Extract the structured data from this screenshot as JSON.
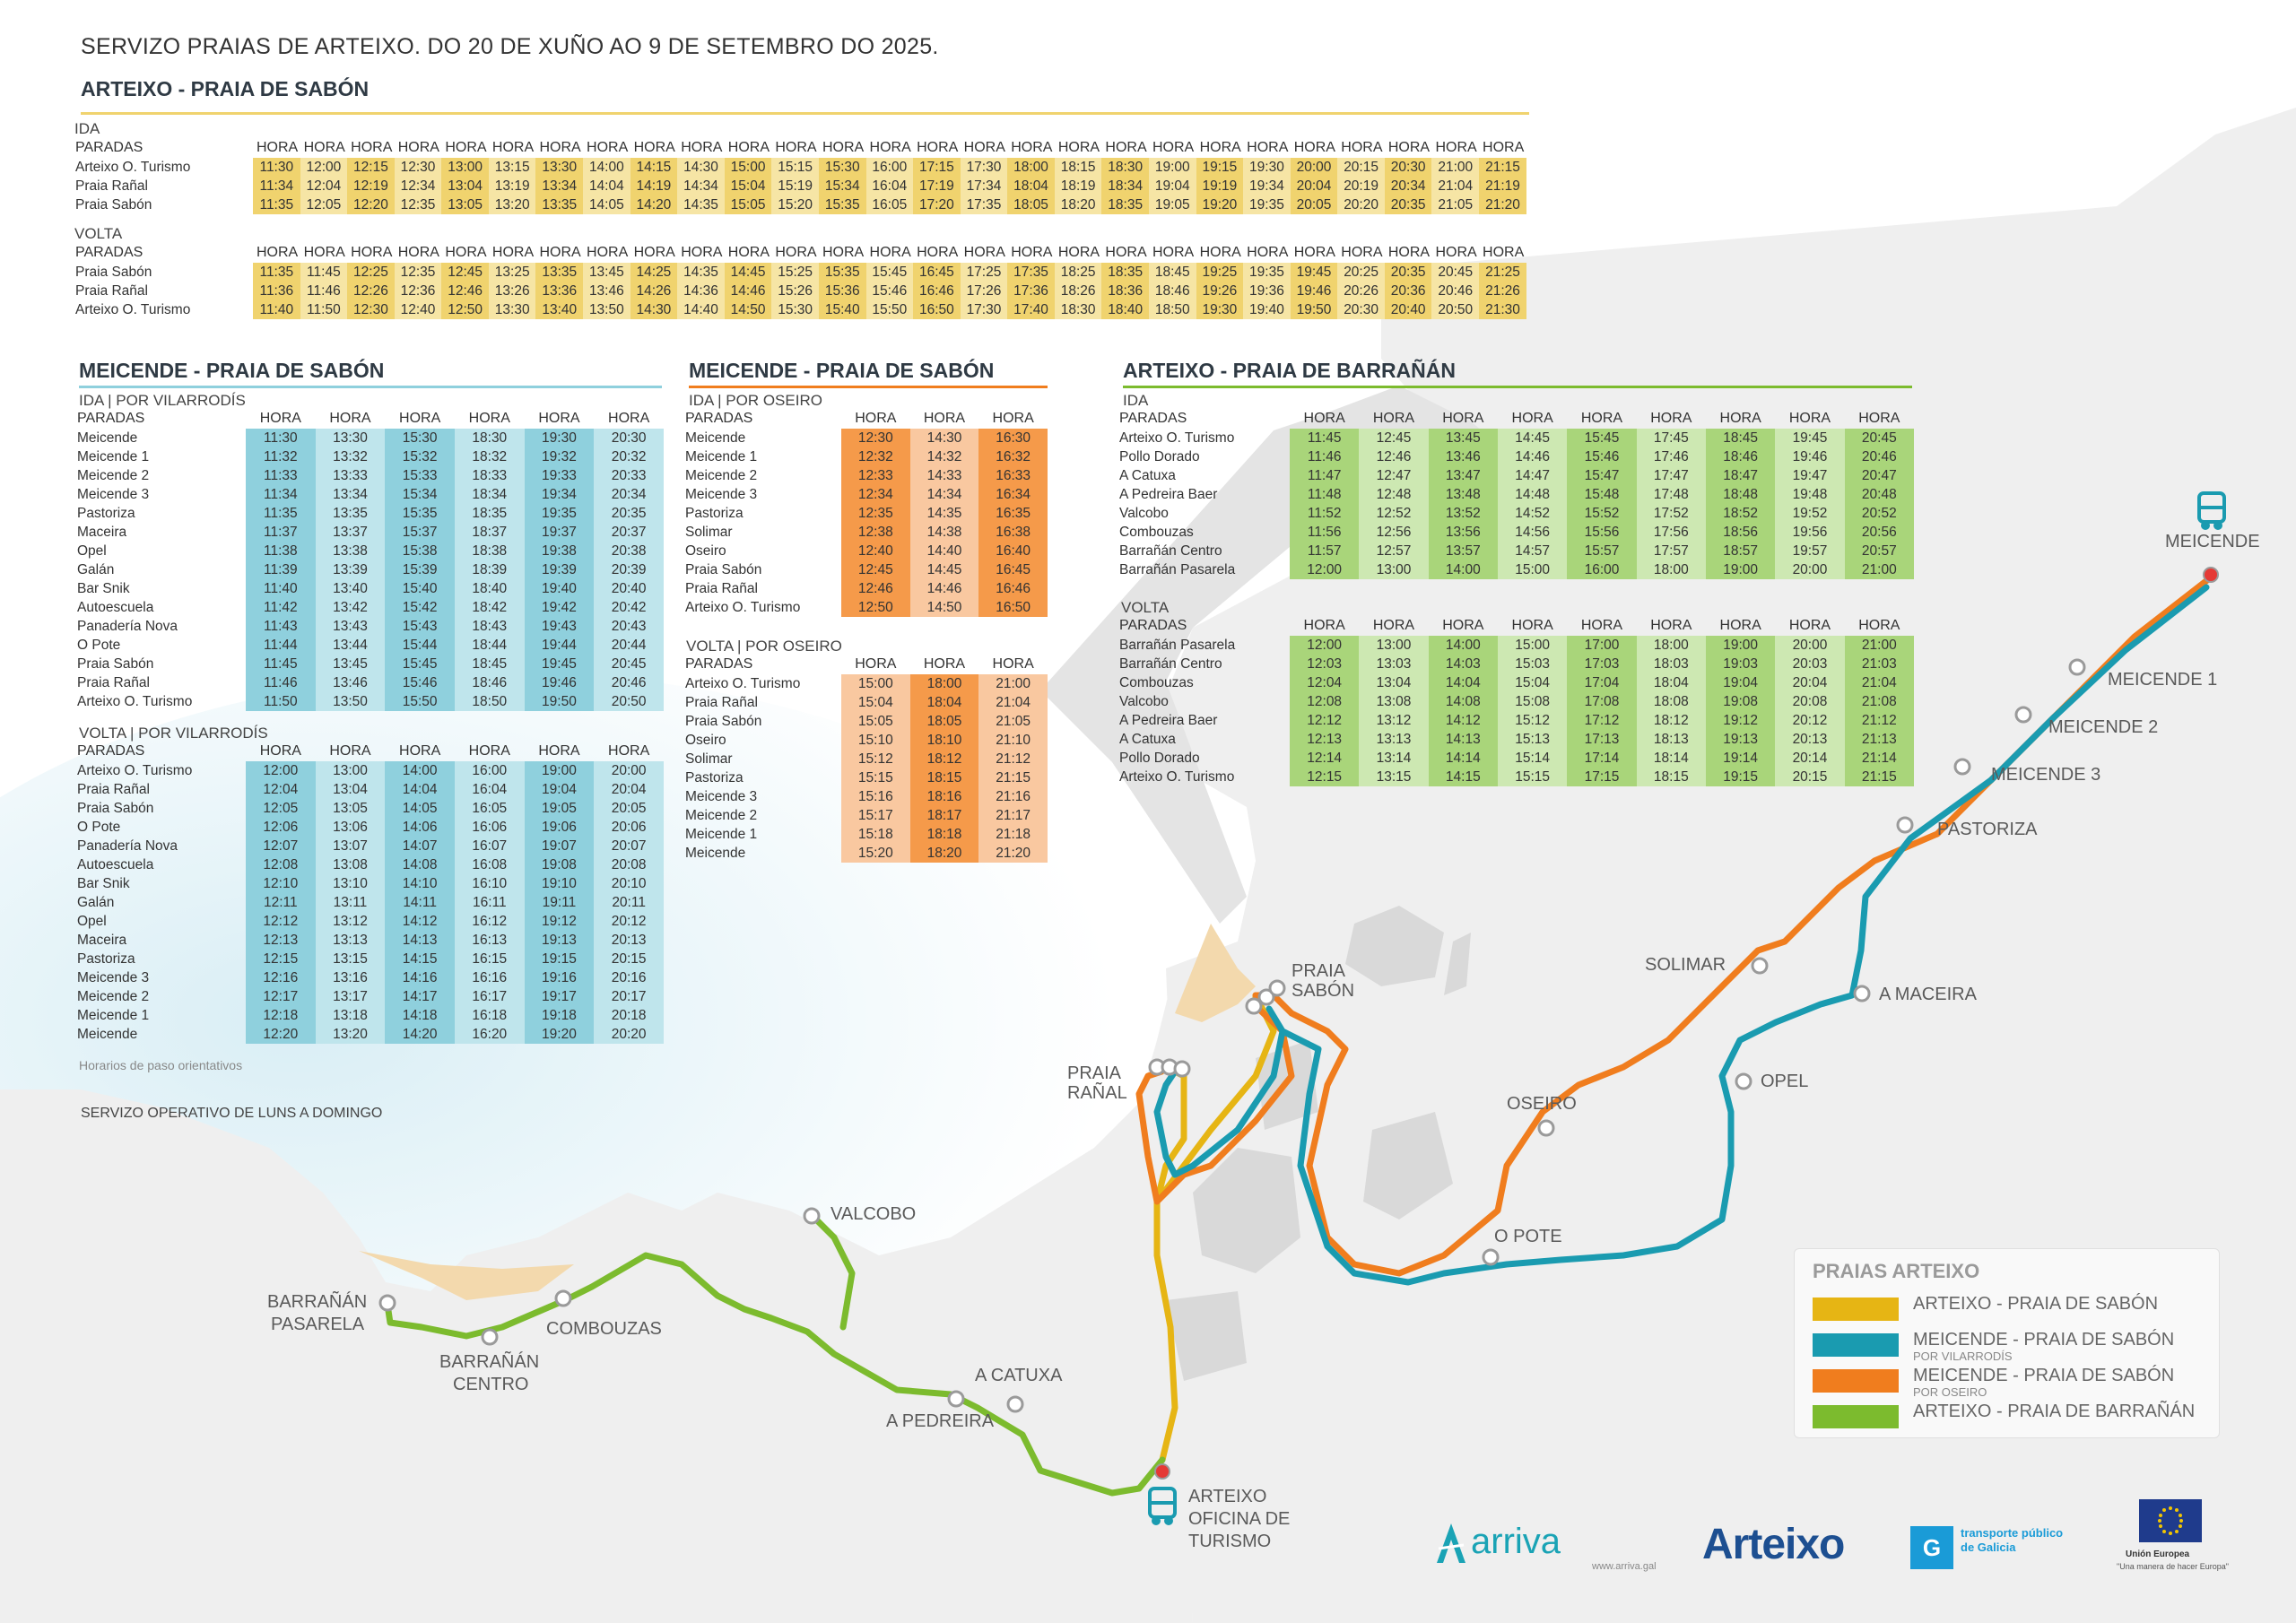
{
  "title": "SERVIZO PRAIAS DE ARTEIXO. DO 20 DE XUÑO AO 9 DE SETEMBRO DO 2025.",
  "colors": {
    "yellow": "#f0d36e",
    "yellow_alt": "#f6e5a5",
    "blue": "#8fd0dd",
    "blue_alt": "#bfe5ec",
    "orange": "#f59a4a",
    "orange_alt": "#f9c8a0",
    "green": "#a9d57a",
    "green_alt": "#cde8b2",
    "line_yellow": "#e6b514",
    "line_blue": "#1a9bb0",
    "line_orange": "#f07d1e",
    "line_green": "#7cbb2e"
  },
  "sabon": {
    "title": "ARTEIXO - PRAIA DE SABÓN",
    "ida_label": "IDA",
    "volta_label": "VOLTA",
    "paradas_label": "PARADAS",
    "hora_label": "HORA",
    "ida": [
      {
        "stop": "Arteixo O. Turismo",
        "times": [
          "11:30",
          "12:00",
          "12:15",
          "12:30",
          "13:00",
          "13:15",
          "13:30",
          "14:00",
          "14:15",
          "14:30",
          "15:00",
          "15:15",
          "15:30",
          "16:00",
          "17:15",
          "17:30",
          "18:00",
          "18:15",
          "18:30",
          "19:00",
          "19:15",
          "19:30",
          "20:00",
          "20:15",
          "20:30",
          "21:00",
          "21:15"
        ]
      },
      {
        "stop": "Praia Rañal",
        "times": [
          "11:34",
          "12:04",
          "12:19",
          "12:34",
          "13:04",
          "13:19",
          "13:34",
          "14:04",
          "14:19",
          "14:34",
          "15:04",
          "15:19",
          "15:34",
          "16:04",
          "17:19",
          "17:34",
          "18:04",
          "18:19",
          "18:34",
          "19:04",
          "19:19",
          "19:34",
          "20:04",
          "20:19",
          "20:34",
          "21:04",
          "21:19"
        ]
      },
      {
        "stop": "Praia Sabón",
        "times": [
          "11:35",
          "12:05",
          "12:20",
          "12:35",
          "13:05",
          "13:20",
          "13:35",
          "14:05",
          "14:20",
          "14:35",
          "15:05",
          "15:20",
          "15:35",
          "16:05",
          "17:20",
          "17:35",
          "18:05",
          "18:20",
          "18:35",
          "19:05",
          "19:20",
          "19:35",
          "20:05",
          "20:20",
          "20:35",
          "21:05",
          "21:20"
        ]
      }
    ],
    "volta": [
      {
        "stop": "Praia Sabón",
        "times": [
          "11:35",
          "11:45",
          "12:25",
          "12:35",
          "12:45",
          "13:25",
          "13:35",
          "13:45",
          "14:25",
          "14:35",
          "14:45",
          "15:25",
          "15:35",
          "15:45",
          "16:45",
          "17:25",
          "17:35",
          "18:25",
          "18:35",
          "18:45",
          "19:25",
          "19:35",
          "19:45",
          "20:25",
          "20:35",
          "20:45",
          "21:25"
        ]
      },
      {
        "stop": "Praia Rañal",
        "times": [
          "11:36",
          "11:46",
          "12:26",
          "12:36",
          "12:46",
          "13:26",
          "13:36",
          "13:46",
          "14:26",
          "14:36",
          "14:46",
          "15:26",
          "15:36",
          "15:46",
          "16:46",
          "17:26",
          "17:36",
          "18:26",
          "18:36",
          "18:46",
          "19:26",
          "19:36",
          "19:46",
          "20:26",
          "20:36",
          "20:46",
          "21:26"
        ]
      },
      {
        "stop": "Arteixo O. Turismo",
        "times": [
          "11:40",
          "11:50",
          "12:30",
          "12:40",
          "12:50",
          "13:30",
          "13:40",
          "13:50",
          "14:30",
          "14:40",
          "14:50",
          "15:30",
          "15:40",
          "15:50",
          "16:50",
          "17:30",
          "17:40",
          "18:30",
          "18:40",
          "18:50",
          "19:30",
          "19:40",
          "19:50",
          "20:30",
          "20:40",
          "20:50",
          "21:30"
        ]
      }
    ]
  },
  "vilarrodis": {
    "title": "MEICENDE - PRAIA DE SABÓN",
    "ida_label": "IDA | POR VILARRODÍS",
    "volta_label": "VOLTA | POR VILARRODÍS",
    "paradas_label": "PARADAS",
    "hora_label": "HORA",
    "ida": [
      {
        "stop": "Meicende",
        "times": [
          "11:30",
          "13:30",
          "15:30",
          "18:30",
          "19:30",
          "20:30"
        ]
      },
      {
        "stop": "Meicende  1",
        "times": [
          "11:32",
          "13:32",
          "15:32",
          "18:32",
          "19:32",
          "20:32"
        ]
      },
      {
        "stop": "Meicende 2",
        "times": [
          "11:33",
          "13:33",
          "15:33",
          "18:33",
          "19:33",
          "20:33"
        ]
      },
      {
        "stop": "Meicende 3",
        "times": [
          "11:34",
          "13:34",
          "15:34",
          "18:34",
          "19:34",
          "20:34"
        ]
      },
      {
        "stop": "Pastoriza",
        "times": [
          "11:35",
          "13:35",
          "15:35",
          "18:35",
          "19:35",
          "20:35"
        ]
      },
      {
        "stop": "Maceira",
        "times": [
          "11:37",
          "13:37",
          "15:37",
          "18:37",
          "19:37",
          "20:37"
        ]
      },
      {
        "stop": "Opel",
        "times": [
          "11:38",
          "13:38",
          "15:38",
          "18:38",
          "19:38",
          "20:38"
        ]
      },
      {
        "stop": "Galán",
        "times": [
          "11:39",
          "13:39",
          "15:39",
          "18:39",
          "19:39",
          "20:39"
        ]
      },
      {
        "stop": "Bar Snik",
        "times": [
          "11:40",
          "13:40",
          "15:40",
          "18:40",
          "19:40",
          "20:40"
        ]
      },
      {
        "stop": "Autoescuela",
        "times": [
          "11:42",
          "13:42",
          "15:42",
          "18:42",
          "19:42",
          "20:42"
        ]
      },
      {
        "stop": "Panadería Nova",
        "times": [
          "11:43",
          "13:43",
          "15:43",
          "18:43",
          "19:43",
          "20:43"
        ]
      },
      {
        "stop": "O Pote",
        "times": [
          "11:44",
          "13:44",
          "15:44",
          "18:44",
          "19:44",
          "20:44"
        ]
      },
      {
        "stop": "Praia Sabón",
        "times": [
          "11:45",
          "13:45",
          "15:45",
          "18:45",
          "19:45",
          "20:45"
        ]
      },
      {
        "stop": "Praia Rañal",
        "times": [
          "11:46",
          "13:46",
          "15:46",
          "18:46",
          "19:46",
          "20:46"
        ]
      },
      {
        "stop": "Arteixo O. Turismo",
        "times": [
          "11:50",
          "13:50",
          "15:50",
          "18:50",
          "19:50",
          "20:50"
        ]
      }
    ],
    "volta": [
      {
        "stop": "Arteixo O. Turismo",
        "times": [
          "12:00",
          "13:00",
          "14:00",
          "16:00",
          "19:00",
          "20:00"
        ]
      },
      {
        "stop": "Praia Rañal",
        "times": [
          "12:04",
          "13:04",
          "14:04",
          "16:04",
          "19:04",
          "20:04"
        ]
      },
      {
        "stop": "Praia Sabón",
        "times": [
          "12:05",
          "13:05",
          "14:05",
          "16:05",
          "19:05",
          "20:05"
        ]
      },
      {
        "stop": "O Pote",
        "times": [
          "12:06",
          "13:06",
          "14:06",
          "16:06",
          "19:06",
          "20:06"
        ]
      },
      {
        "stop": "Panadería Nova",
        "times": [
          "12:07",
          "13:07",
          "14:07",
          "16:07",
          "19:07",
          "20:07"
        ]
      },
      {
        "stop": "Autoescuela",
        "times": [
          "12:08",
          "13:08",
          "14:08",
          "16:08",
          "19:08",
          "20:08"
        ]
      },
      {
        "stop": "Bar Snik",
        "times": [
          "12:10",
          "13:10",
          "14:10",
          "16:10",
          "19:10",
          "20:10"
        ]
      },
      {
        "stop": "Galán",
        "times": [
          "12:11",
          "13:11",
          "14:11",
          "16:11",
          "19:11",
          "20:11"
        ]
      },
      {
        "stop": "Opel",
        "times": [
          "12:12",
          "13:12",
          "14:12",
          "16:12",
          "19:12",
          "20:12"
        ]
      },
      {
        "stop": "Maceira",
        "times": [
          "12:13",
          "13:13",
          "14:13",
          "16:13",
          "19:13",
          "20:13"
        ]
      },
      {
        "stop": "Pastoriza",
        "times": [
          "12:15",
          "13:15",
          "14:15",
          "16:15",
          "19:15",
          "20:15"
        ]
      },
      {
        "stop": "Meicende 3",
        "times": [
          "12:16",
          "13:16",
          "14:16",
          "16:16",
          "19:16",
          "20:16"
        ]
      },
      {
        "stop": "Meicende 2",
        "times": [
          "12:17",
          "13:17",
          "14:17",
          "16:17",
          "19:17",
          "20:17"
        ]
      },
      {
        "stop": "Meicende  1",
        "times": [
          "12:18",
          "13:18",
          "14:18",
          "16:18",
          "19:18",
          "20:18"
        ]
      },
      {
        "stop": "Meicende",
        "times": [
          "12:20",
          "13:20",
          "14:20",
          "16:20",
          "19:20",
          "20:20"
        ]
      }
    ],
    "note": "Horarios de paso orientativos",
    "service": "SERVIZO OPERATIVO DE LUNS A DOMINGO"
  },
  "oseiro": {
    "title": "MEICENDE - PRAIA DE SABÓN",
    "ida_label": "IDA | POR OSEIRO",
    "volta_label": "VOLTA | POR OSEIRO",
    "paradas_label": "PARADAS",
    "hora_label": "HORA",
    "ida": [
      {
        "stop": "Meicende",
        "times": [
          "12:30",
          "14:30",
          "16:30"
        ]
      },
      {
        "stop": "Meicende  1",
        "times": [
          "12:32",
          "14:32",
          "16:32"
        ]
      },
      {
        "stop": "Meicende 2",
        "times": [
          "12:33",
          "14:33",
          "16:33"
        ]
      },
      {
        "stop": "Meicende 3",
        "times": [
          "12:34",
          "14:34",
          "16:34"
        ]
      },
      {
        "stop": "Pastoriza",
        "times": [
          "12:35",
          "14:35",
          "16:35"
        ]
      },
      {
        "stop": "Solimar",
        "times": [
          "12:38",
          "14:38",
          "16:38"
        ]
      },
      {
        "stop": "Oseiro",
        "times": [
          "12:40",
          "14:40",
          "16:40"
        ]
      },
      {
        "stop": "Praia Sabón",
        "times": [
          "12:45",
          "14:45",
          "16:45"
        ]
      },
      {
        "stop": "Praia Rañal",
        "times": [
          "12:46",
          "14:46",
          "16:46"
        ]
      },
      {
        "stop": "Arteixo O. Turismo",
        "times": [
          "12:50",
          "14:50",
          "16:50"
        ]
      }
    ],
    "volta": [
      {
        "stop": "Arteixo O. Turismo",
        "times": [
          "15:00",
          "18:00",
          "21:00"
        ]
      },
      {
        "stop": "Praia Rañal",
        "times": [
          "15:04",
          "18:04",
          "21:04"
        ]
      },
      {
        "stop": "Praia Sabón",
        "times": [
          "15:05",
          "18:05",
          "21:05"
        ]
      },
      {
        "stop": "Oseiro",
        "times": [
          "15:10",
          "18:10",
          "21:10"
        ]
      },
      {
        "stop": "Solimar",
        "times": [
          "15:12",
          "18:12",
          "21:12"
        ]
      },
      {
        "stop": "Pastoriza",
        "times": [
          "15:15",
          "18:15",
          "21:15"
        ]
      },
      {
        "stop": "Meicende 3",
        "times": [
          "15:16",
          "18:16",
          "21:16"
        ]
      },
      {
        "stop": "Meicende 2",
        "times": [
          "15:17",
          "18:17",
          "21:17"
        ]
      },
      {
        "stop": "Meicende  1",
        "times": [
          "15:18",
          "18:18",
          "21:18"
        ]
      },
      {
        "stop": "Meicende",
        "times": [
          "15:20",
          "18:20",
          "21:20"
        ]
      }
    ]
  },
  "barranan": {
    "title": "ARTEIXO - PRAIA DE BARRAÑÁN",
    "ida_label": "IDA",
    "volta_label": "VOLTA",
    "paradas_label": "PARADAS",
    "hora_label": "HORA",
    "ida": [
      {
        "stop": "Arteixo O. Turismo",
        "times": [
          "11:45",
          "12:45",
          "13:45",
          "14:45",
          "15:45",
          "17:45",
          "18:45",
          "19:45",
          "20:45"
        ]
      },
      {
        "stop": "Pollo Dorado",
        "times": [
          "11:46",
          "12:46",
          "13:46",
          "14:46",
          "15:46",
          "17:46",
          "18:46",
          "19:46",
          "20:46"
        ]
      },
      {
        "stop": "A Catuxa",
        "times": [
          "11:47",
          "12:47",
          "13:47",
          "14:47",
          "15:47",
          "17:47",
          "18:47",
          "19:47",
          "20:47"
        ]
      },
      {
        "stop": "A Pedreira Baer",
        "times": [
          "11:48",
          "12:48",
          "13:48",
          "14:48",
          "15:48",
          "17:48",
          "18:48",
          "19:48",
          "20:48"
        ]
      },
      {
        "stop": "Valcobo",
        "times": [
          "11:52",
          "12:52",
          "13:52",
          "14:52",
          "15:52",
          "17:52",
          "18:52",
          "19:52",
          "20:52"
        ]
      },
      {
        "stop": "Combouzas",
        "times": [
          "11:56",
          "12:56",
          "13:56",
          "14:56",
          "15:56",
          "17:56",
          "18:56",
          "19:56",
          "20:56"
        ]
      },
      {
        "stop": "Barrañán Centro",
        "times": [
          "11:57",
          "12:57",
          "13:57",
          "14:57",
          "15:57",
          "17:57",
          "18:57",
          "19:57",
          "20:57"
        ]
      },
      {
        "stop": "Barrañán Pasarela",
        "times": [
          "12:00",
          "13:00",
          "14:00",
          "15:00",
          "16:00",
          "18:00",
          "19:00",
          "20:00",
          "21:00"
        ]
      }
    ],
    "volta": [
      {
        "stop": "Barrañán Pasarela",
        "times": [
          "12:00",
          "13:00",
          "14:00",
          "15:00",
          "17:00",
          "18:00",
          "19:00",
          "20:00",
          "21:00"
        ]
      },
      {
        "stop": "Barrañán Centro",
        "times": [
          "12:03",
          "13:03",
          "14:03",
          "15:03",
          "17:03",
          "18:03",
          "19:03",
          "20:03",
          "21:03"
        ]
      },
      {
        "stop": "Combouzas",
        "times": [
          "12:04",
          "13:04",
          "14:04",
          "15:04",
          "17:04",
          "18:04",
          "19:04",
          "20:04",
          "21:04"
        ]
      },
      {
        "stop": "Valcobo",
        "times": [
          "12:08",
          "13:08",
          "14:08",
          "15:08",
          "17:08",
          "18:08",
          "19:08",
          "20:08",
          "21:08"
        ]
      },
      {
        "stop": "A Pedreira Baer",
        "times": [
          "12:12",
          "13:12",
          "14:12",
          "15:12",
          "17:12",
          "18:12",
          "19:12",
          "20:12",
          "21:12"
        ]
      },
      {
        "stop": "A Catuxa",
        "times": [
          "12:13",
          "13:13",
          "14:13",
          "15:13",
          "17:13",
          "18:13",
          "19:13",
          "20:13",
          "21:13"
        ]
      },
      {
        "stop": "Pollo Dorado",
        "times": [
          "12:14",
          "13:14",
          "14:14",
          "15:14",
          "17:14",
          "18:14",
          "19:14",
          "20:14",
          "21:14"
        ]
      },
      {
        "stop": "Arteixo O. Turismo",
        "times": [
          "12:15",
          "13:15",
          "14:15",
          "15:15",
          "17:15",
          "18:15",
          "19:15",
          "20:15",
          "21:15"
        ]
      }
    ]
  },
  "map": {
    "stops": {
      "meicende": "MEICENDE",
      "meicende1": "MEICENDE 1",
      "meicende2": "MEICENDE 2",
      "meicende3": "MEICENDE 3",
      "pastoriza": "PASTORIZA",
      "solimar": "SOLIMAR",
      "maceira": "A MACEIRA",
      "opel": "OPEL",
      "oseiro": "OSEIRO",
      "opote": "O POTE",
      "sabon_1": "PRAIA",
      "sabon_2": "SABÓN",
      "ranal_1": "PRAIA",
      "ranal_2": "RAÑAL",
      "valcobo": "VALCOBO",
      "barranan_pasarela_1": "BARRAÑÁN",
      "barranan_pasarela_2": "PASARELA",
      "barranan_centro_1": "BARRAÑÁN",
      "barranan_centro_2": "CENTRO",
      "combouzas": "COMBOUZAS",
      "catuxa": "A CATUXA",
      "pedreira": "A PEDREIRA",
      "turismo_1": "ARTEIXO",
      "turismo_2": "OFICINA DE",
      "turismo_3": "TURISMO"
    }
  },
  "legend": {
    "title": "PRAIAS ARTEIXO",
    "items": [
      {
        "label": "ARTEIXO - PRAIA DE SABÓN",
        "sub": ""
      },
      {
        "label": "MEICENDE - PRAIA DE SABÓN",
        "sub": "POR VILARRODÍS"
      },
      {
        "label": "MEICENDE - PRAIA DE SABÓN",
        "sub": "POR OSEIRO"
      },
      {
        "label": "ARTEIXO - PRAIA DE BARRAÑÁN",
        "sub": ""
      }
    ]
  },
  "footer": {
    "arriva": "arriva",
    "arriva_url": "www.arriva.gal",
    "arteixo": "Arteixo",
    "tpg_1": "transporte público",
    "tpg_2": "de Galicia",
    "eu_1": "Unión Europea",
    "eu_2": "\"Una manera de hacer Europa\""
  }
}
